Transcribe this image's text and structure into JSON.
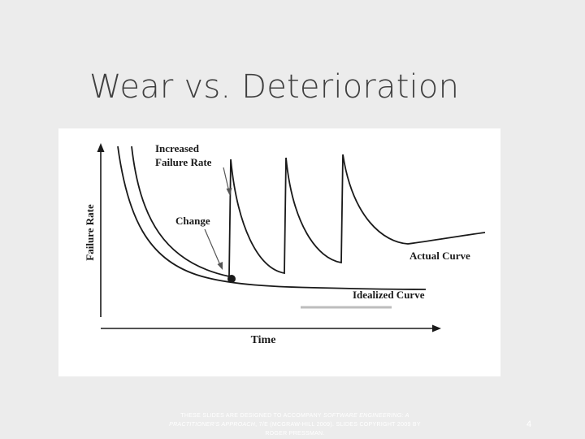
{
  "slide": {
    "title": "Wear vs. Deterioration",
    "page_number": "4"
  },
  "figure": {
    "y_axis_label": "Failure Rate",
    "x_axis_label": "Time",
    "annotations": {
      "increased_line1": "Increased",
      "increased_line2": "Failure Rate",
      "change": "Change",
      "actual_curve": "Actual Curve",
      "idealized_curve": "Idealized Curve"
    }
  },
  "footer": {
    "part1": "THESE SLIDES ARE DESIGNED TO ACCOMPANY ",
    "part2_italic": "SOFTWARE ENGINEERING: A PRACTITIONER'S APPROACH",
    "part3": ", 7/E (MCGRAW-HILL 2009). SLIDES COPYRIGHT 2009 BY ROGER PRESSMAN."
  },
  "colors": {
    "slide_background": "#ececec",
    "title_text": "#404040",
    "figure_background": "#ffffff",
    "curve_stroke": "#1a1a1a"
  }
}
